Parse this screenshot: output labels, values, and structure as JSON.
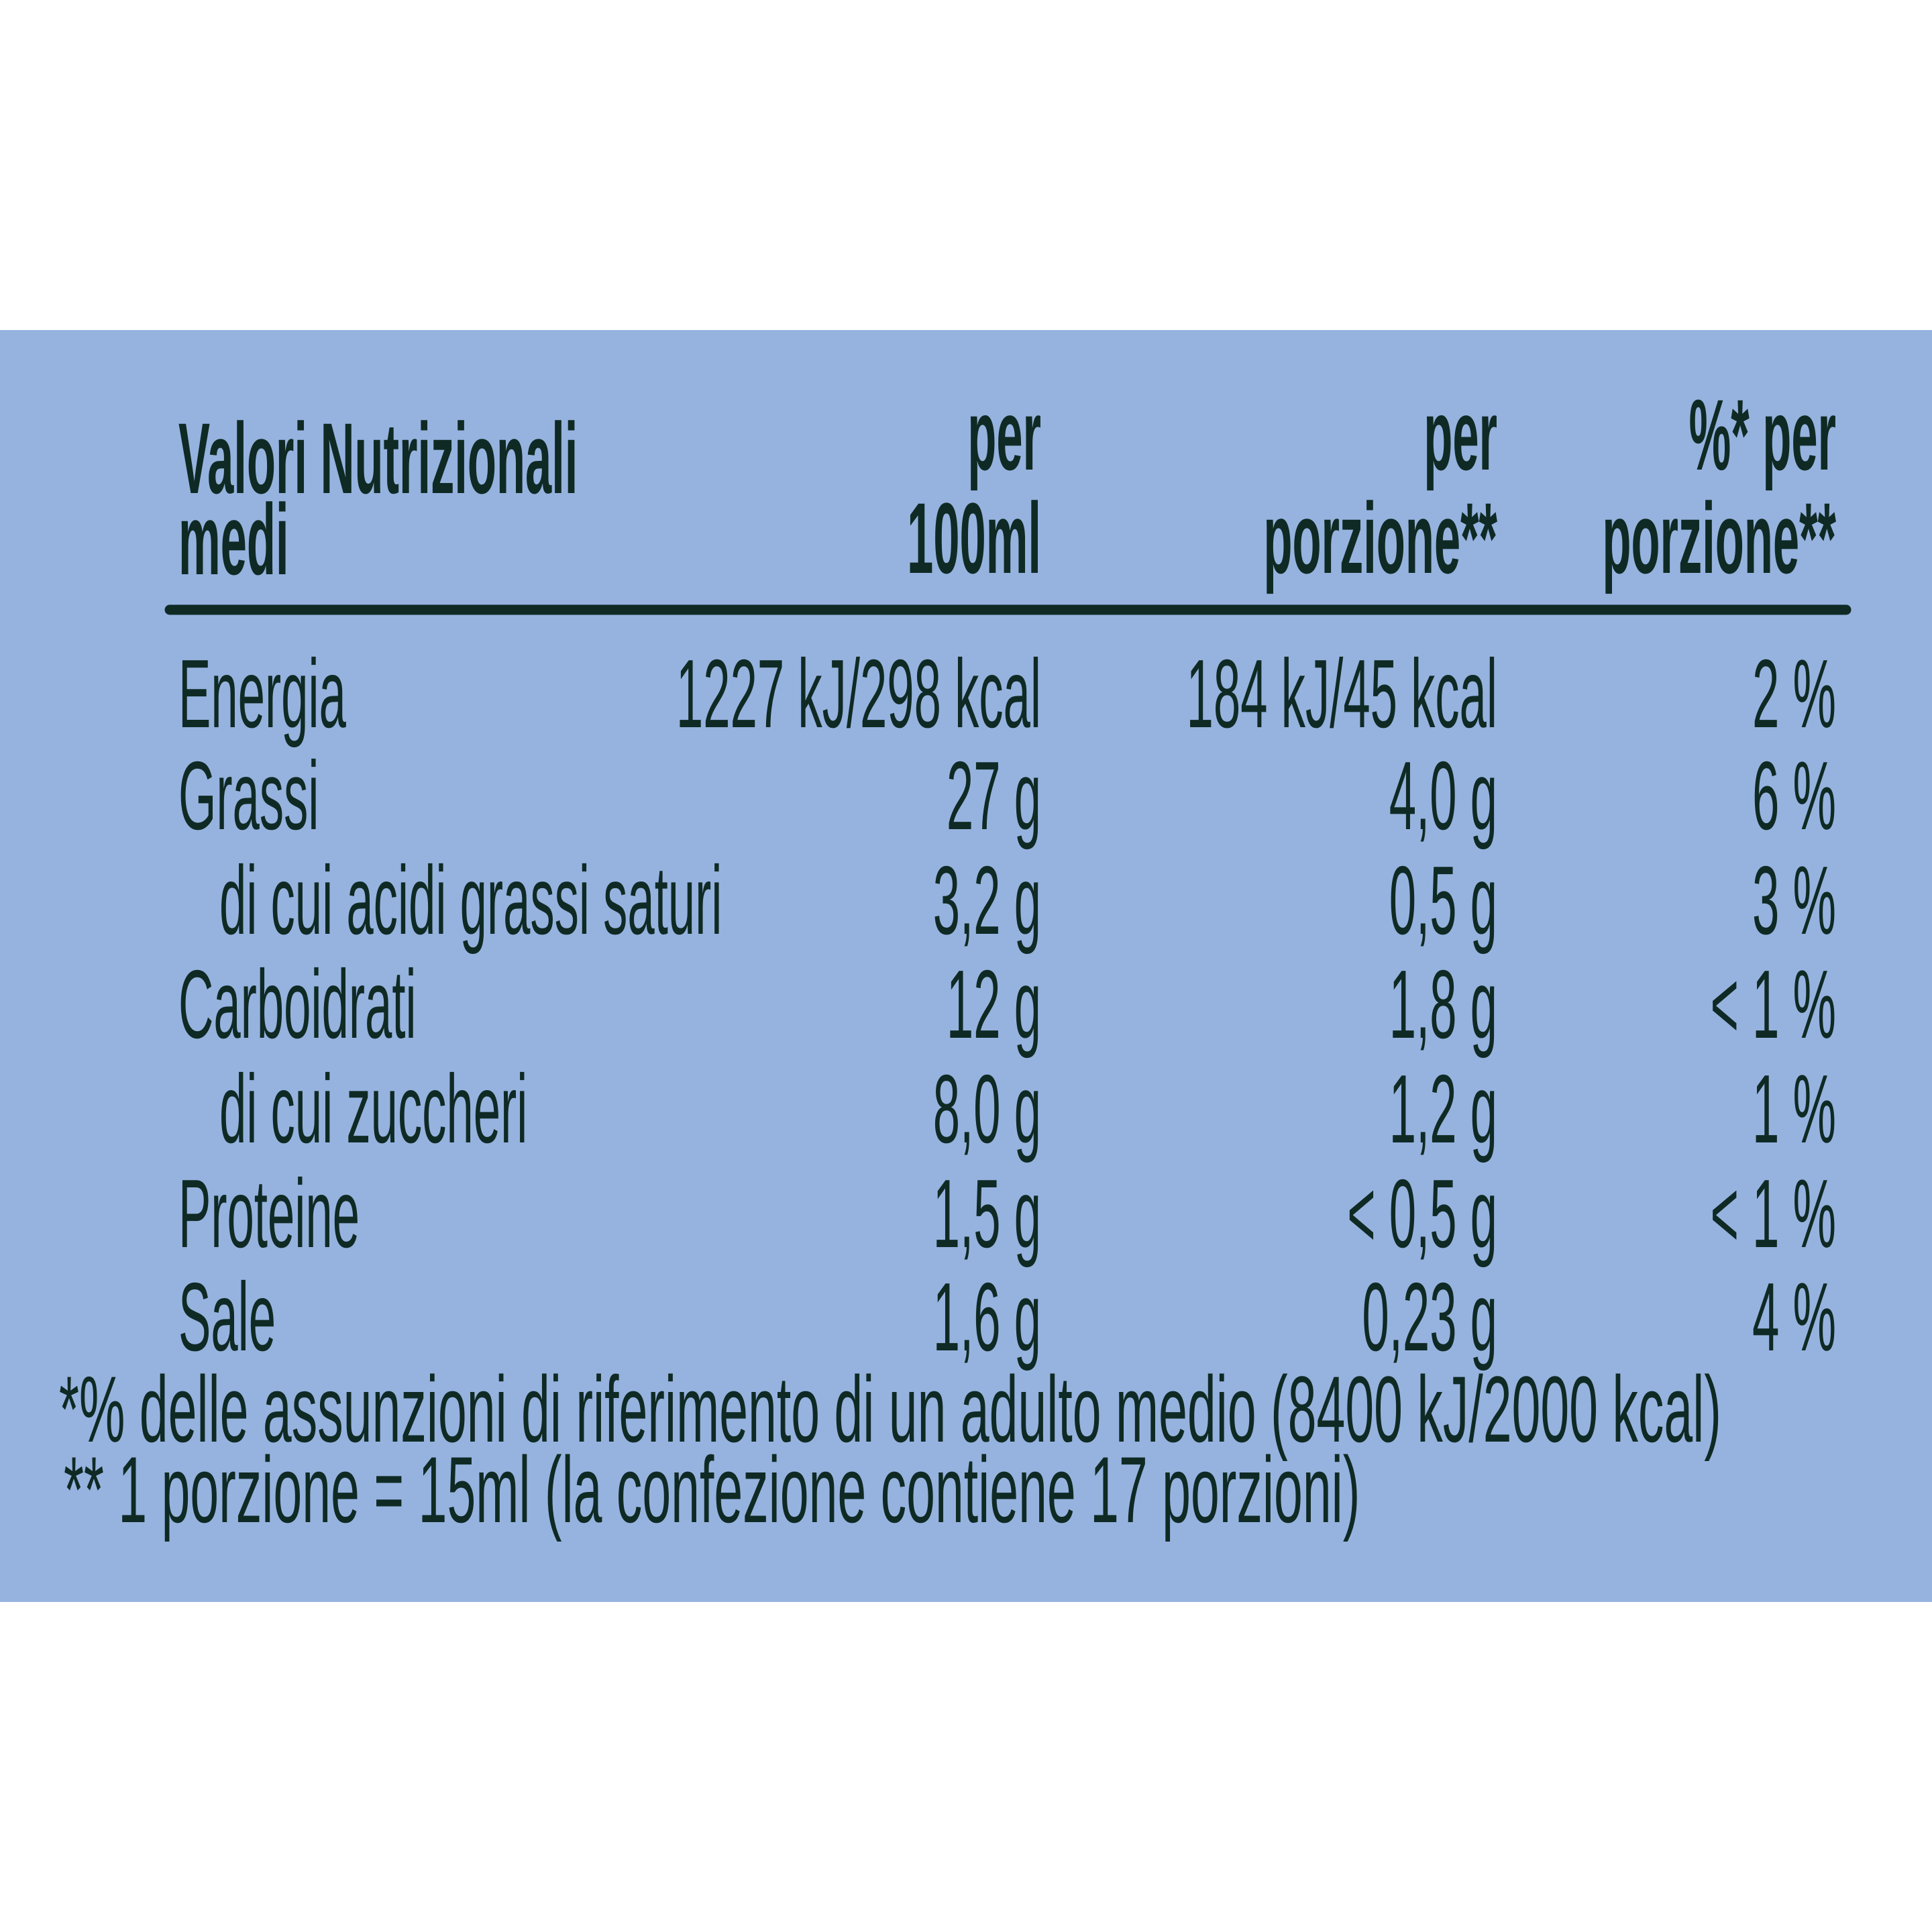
{
  "header": [
    [
      "Valori Nutrizionali",
      "medi"
    ],
    [
      "per",
      "100ml"
    ],
    [
      "per",
      "porzione**"
    ],
    [
      "%* per",
      "porzione**"
    ]
  ],
  "table": {
    "rows": [
      [
        "Energia",
        "1227 kJ/298 kcal",
        "184 kJ/45 kcal",
        "2 %"
      ],
      [
        "Grassi",
        "27 g",
        "4,0 g",
        "6 %"
      ],
      [
        "di cui acidi grassi saturi",
        "3,2 g",
        "0,5 g",
        "3 %"
      ],
      [
        "Carboidrati",
        "12 g",
        "1,8 g",
        "< 1 %"
      ],
      [
        "di cui zuccheri",
        "8,0 g",
        "1,2 g",
        "1 %"
      ],
      [
        "Proteine",
        "1,5 g",
        "< 0,5 g",
        "< 1 %"
      ],
      [
        "Sale",
        "1,6 g",
        "0,23 g",
        "4 %"
      ]
    ]
  },
  "footnotes": [
    "*% delle assunzioni di riferimento di un adulto medio (8400 kJ/2000 kcal)",
    "** 1 porzione = 15ml (la confezione contiene 17 porzioni)"
  ]
}
